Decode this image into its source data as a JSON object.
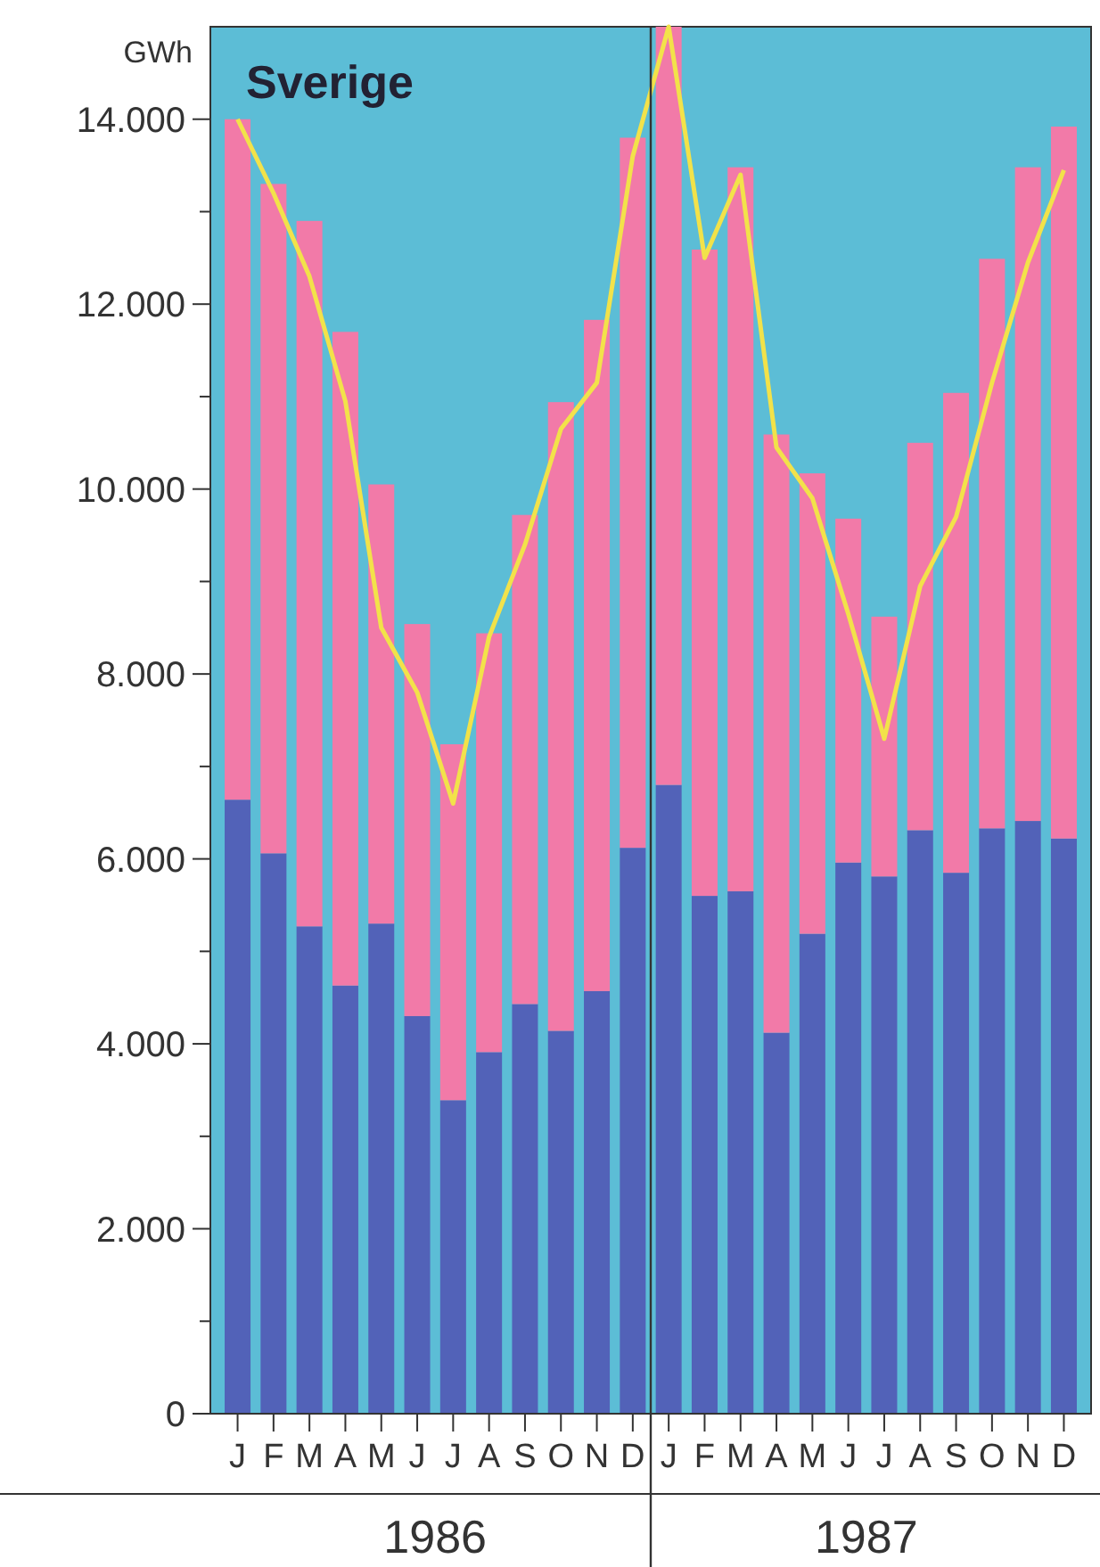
{
  "chart_data": {
    "type": "bar",
    "title": "Sverige",
    "ylabel": "GWh",
    "stacked": true,
    "categories": [
      "J",
      "F",
      "M",
      "A",
      "M",
      "J",
      "J",
      "A",
      "S",
      "O",
      "N",
      "D",
      "J",
      "F",
      "M",
      "A",
      "M",
      "J",
      "J",
      "A",
      "S",
      "O",
      "N",
      "D"
    ],
    "series": [
      {
        "color": "#5262b8",
        "values": [
          6640,
          6060,
          5270,
          4630,
          5300,
          4300,
          3390,
          3910,
          4430,
          4140,
          4570,
          6120,
          6800,
          5600,
          5650,
          4120,
          5190,
          5960,
          5810,
          6310,
          5850,
          6330,
          6410,
          6220
        ]
      },
      {
        "color": "#f27aa8",
        "values": [
          7360,
          7240,
          7630,
          7070,
          4750,
          4240,
          3850,
          4530,
          5290,
          6800,
          7260,
          7680,
          8200,
          6990,
          7830,
          6470,
          4980,
          3720,
          2810,
          4190,
          5190,
          6160,
          7070,
          7700
        ]
      },
      {
        "type": "line",
        "color": "#f2e24a",
        "values": [
          14000,
          13200,
          12300,
          10950,
          8500,
          7800,
          6600,
          8400,
          9400,
          10650,
          11150,
          13600,
          15000,
          12500,
          13400,
          10450,
          9900,
          8650,
          7300,
          8950,
          9700,
          11150,
          12450,
          13450
        ]
      }
    ],
    "ylim": [
      0,
      15000
    ],
    "yticks": [
      {
        "value": 0,
        "label": "0"
      },
      {
        "value": 1000,
        "label": null
      },
      {
        "value": 2000,
        "label": "2.000"
      },
      {
        "value": 3000,
        "label": null
      },
      {
        "value": 4000,
        "label": "4.000"
      },
      {
        "value": 5000,
        "label": null
      },
      {
        "value": 6000,
        "label": "6.000"
      },
      {
        "value": 7000,
        "label": null
      },
      {
        "value": 8000,
        "label": "8.000"
      },
      {
        "value": 9000,
        "label": null
      },
      {
        "value": 10000,
        "label": "10.000"
      },
      {
        "value": 11000,
        "label": null
      },
      {
        "value": 12000,
        "label": "12.000"
      },
      {
        "value": 13000,
        "label": null
      },
      {
        "value": 14000,
        "label": "14.000"
      }
    ],
    "annotations": [
      "1986",
      "1987"
    ],
    "grid": false
  }
}
